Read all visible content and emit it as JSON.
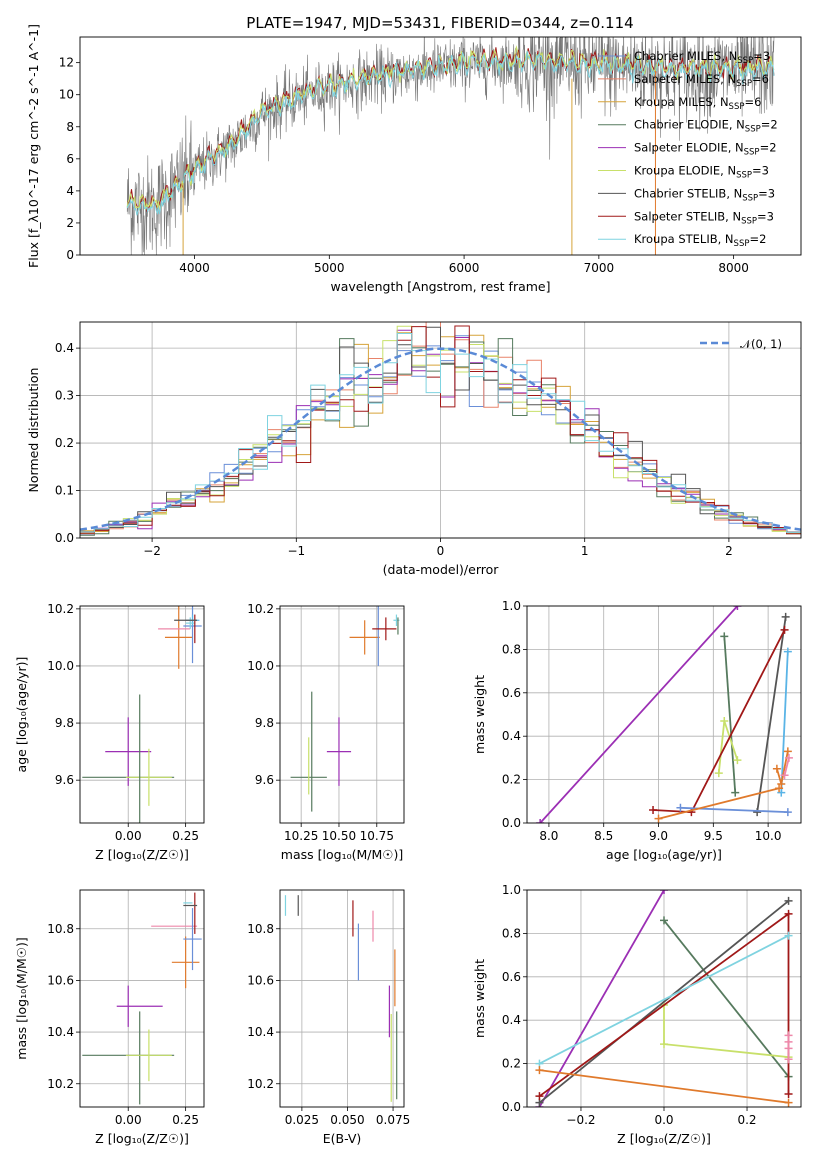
{
  "colors": {
    "chabrier_miles": "#6a8fd8",
    "salpeter_miles": "#e8836a",
    "kroupa_miles": "#d6a33a",
    "chabrier_elodie": "#567a5e",
    "salpeter_elodie": "#9b2fb4",
    "kroupa_elodie": "#c8e06a",
    "chabrier_stelib": "#555555",
    "salpeter_stelib": "#a01818",
    "kroupa_stelib": "#7fd3e0",
    "orange": "#e07a2c",
    "pink": "#ee88aa",
    "sky": "#5ab4e6",
    "gaussian": "#5a8ad6"
  },
  "chart_data": [
    {
      "type": "line",
      "title": "PLATE=1947, MJD=53431, FIBERID=0344, z=0.114",
      "xlabel": "wavelength [Angstrom, rest frame]",
      "ylabel": "Flux [f_λ10^-17 erg cm^-2 s^-1 A^-1]",
      "xlim": [
        3150,
        8500
      ],
      "ylim": [
        0,
        13.6
      ],
      "xticks": [
        4000,
        5000,
        6000,
        7000,
        8000
      ],
      "yticks": [
        0,
        2,
        4,
        6,
        8,
        10,
        12
      ],
      "spectrum_anchors": {
        "x": [
          3500,
          3700,
          4000,
          4300,
          4500,
          4800,
          5000,
          5300,
          5600,
          6000,
          6300,
          6600,
          7000,
          7300,
          7600,
          8000,
          8300
        ],
        "y": [
          3.2,
          2.9,
          5.2,
          7.0,
          8.8,
          9.9,
          10.4,
          11.0,
          11.4,
          11.9,
          12.0,
          12.0,
          11.8,
          11.7,
          11.5,
          11.5,
          11.6
        ]
      },
      "legend_position": "right",
      "legend": [
        {
          "prefix": "Chabrier MILES, N",
          "sub": "SSP",
          "suffix": "=3"
        },
        {
          "prefix": "Salpeter MILES, N",
          "sub": "SSP",
          "suffix": "=6"
        },
        {
          "prefix": "Kroupa MILES, N",
          "sub": "SSP",
          "suffix": "=6"
        },
        {
          "prefix": "Chabrier ELODIE, N",
          "sub": "SSP",
          "suffix": "=2"
        },
        {
          "prefix": "Salpeter ELODIE, N",
          "sub": "SSP",
          "suffix": "=2"
        },
        {
          "prefix": "Kroupa ELODIE, N",
          "sub": "SSP",
          "suffix": "=3"
        },
        {
          "prefix": "Chabrier STELIB, N",
          "sub": "SSP",
          "suffix": "=3"
        },
        {
          "prefix": "Salpeter STELIB, N",
          "sub": "SSP",
          "suffix": "=3"
        },
        {
          "prefix": "Kroupa STELIB, N",
          "sub": "SSP",
          "suffix": "=2"
        }
      ]
    },
    {
      "type": "histogram",
      "xlabel": "(data-model)/error",
      "ylabel": "Normed distribution",
      "xlim": [
        -2.5,
        2.5
      ],
      "ylim": [
        0,
        0.455
      ],
      "xticks": [
        -2,
        -1,
        0,
        1,
        2
      ],
      "yticks": [
        0.0,
        0.1,
        0.2,
        0.3,
        0.4
      ],
      "bin_width": 0.1,
      "gaussian_label": "𝒩(0, 1)",
      "legend_position": "top-right"
    },
    {
      "type": "errorbar",
      "xlabel": "Z [log₁₀(Z/Z☉)]",
      "ylabel": "age  [log₁₀(age/yr)]",
      "xlim": [
        -0.21,
        0.33
      ],
      "ylim": [
        9.45,
        10.21
      ],
      "xticks": [
        0.0,
        0.25
      ],
      "yticks": [
        9.6,
        9.8,
        10.0,
        10.2
      ],
      "points": [
        {
          "x": 0.0,
          "y": 9.7,
          "xerr": 0.1,
          "yerr": 0.12,
          "c": "salpeter_elodie"
        },
        {
          "x": 0.0,
          "y": 9.61,
          "xerr": 0.2,
          "yerr": 0.0,
          "c": "chabrier_elodie"
        },
        {
          "x": 0.09,
          "y": 9.61,
          "xerr": 0.1,
          "yerr": 0.1,
          "c": "kroupa_elodie"
        },
        {
          "x": 0.05,
          "y": 9.61,
          "xerr": 0.0,
          "yerr": 0.29,
          "c": "chabrier_elodie"
        },
        {
          "x": 0.22,
          "y": 10.1,
          "xerr": 0.06,
          "yerr": 0.11,
          "c": "orange"
        },
        {
          "x": 0.2,
          "y": 10.13,
          "xerr": 0.07,
          "yerr": 0.0,
          "c": "pink"
        },
        {
          "x": 0.28,
          "y": 10.14,
          "xerr": 0.04,
          "yerr": 0.13,
          "c": "chabrier_miles"
        },
        {
          "x": 0.28,
          "y": 10.16,
          "xerr": 0.03,
          "yerr": 0.02,
          "c": "sky"
        },
        {
          "x": 0.27,
          "y": 10.15,
          "xerr": 0.02,
          "yerr": 0.02,
          "c": "kroupa_stelib"
        },
        {
          "x": 0.29,
          "y": 10.13,
          "xerr": 0.0,
          "yerr": 0.05,
          "c": "salpeter_stelib"
        },
        {
          "x": 0.25,
          "y": 10.16,
          "xerr": 0.05,
          "yerr": 0.0,
          "c": "chabrier_stelib"
        }
      ]
    },
    {
      "type": "errorbar",
      "xlabel": "mass [log₁₀(M/M☉)]",
      "ylabel": "",
      "xlim": [
        10.11,
        10.93
      ],
      "ylim": [
        9.45,
        10.21
      ],
      "xticks": [
        10.25,
        10.5,
        10.75
      ],
      "yticks": [
        9.6,
        9.8,
        10.0,
        10.2
      ],
      "points": [
        {
          "x": 10.5,
          "y": 9.7,
          "xerr": 0.08,
          "yerr": 0.12,
          "c": "salpeter_elodie"
        },
        {
          "x": 10.3,
          "y": 9.61,
          "xerr": 0.12,
          "yerr": 0.0,
          "c": "chabrier_elodie"
        },
        {
          "x": 10.32,
          "y": 9.7,
          "xerr": 0.0,
          "yerr": 0.21,
          "c": "chabrier_elodie"
        },
        {
          "x": 10.3,
          "y": 9.65,
          "xerr": 0.0,
          "yerr": 0.1,
          "c": "kroupa_elodie"
        },
        {
          "x": 10.67,
          "y": 10.1,
          "xerr": 0.1,
          "yerr": 0.06,
          "c": "orange"
        },
        {
          "x": 10.76,
          "y": 10.12,
          "xerr": 0.0,
          "yerr": 0.12,
          "c": "chabrier_miles"
        },
        {
          "x": 10.8,
          "y": 10.13,
          "xerr": 0.08,
          "yerr": 0.0,
          "c": "salpeter_stelib"
        },
        {
          "x": 10.81,
          "y": 10.13,
          "xerr": 0.0,
          "yerr": 0.04,
          "c": "salpeter_stelib"
        },
        {
          "x": 10.88,
          "y": 10.16,
          "xerr": 0.02,
          "yerr": 0.02,
          "c": "kroupa_stelib"
        },
        {
          "x": 10.89,
          "y": 10.14,
          "xerr": 0.0,
          "yerr": 0.03,
          "c": "chabrier_elodie"
        }
      ]
    },
    {
      "type": "line",
      "xlabel": "age  [log₁₀(age/yr)]",
      "ylabel": "mass weight",
      "xlim": [
        7.8,
        10.3
      ],
      "ylim": [
        0,
        1.0
      ],
      "xticks": [
        8.0,
        8.5,
        9.0,
        9.5,
        10.0
      ],
      "yticks": [
        0.0,
        0.2,
        0.4,
        0.6,
        0.8,
        1.0
      ],
      "series": [
        {
          "c": "salpeter_elodie",
          "x": [
            7.92,
            9.72
          ],
          "y": [
            0.0,
            1.0
          ]
        },
        {
          "c": "chabrier_elodie",
          "x": [
            9.6,
            9.7
          ],
          "y": [
            0.86,
            0.14
          ]
        },
        {
          "c": "kroupa_elodie",
          "x": [
            9.55,
            9.6,
            9.72
          ],
          "y": [
            0.23,
            0.47,
            0.29
          ]
        },
        {
          "c": "chabrier_stelib",
          "x": [
            9.9,
            10.16
          ],
          "y": [
            0.05,
            0.95
          ]
        },
        {
          "c": "salpeter_stelib",
          "x": [
            8.95,
            9.3,
            10.15
          ],
          "y": [
            0.06,
            0.05,
            0.89
          ]
        },
        {
          "c": "chabrier_miles",
          "x": [
            9.2,
            10.18
          ],
          "y": [
            0.07,
            0.05
          ]
        },
        {
          "c": "sky",
          "x": [
            10.12,
            10.18
          ],
          "y": [
            0.14,
            0.79
          ]
        },
        {
          "c": "orange",
          "x": [
            9.0,
            10.1
          ],
          "y": [
            0.02,
            0.16
          ]
        },
        {
          "c": "orange",
          "x": [
            10.08,
            10.12,
            10.18
          ],
          "y": [
            0.25,
            0.18,
            0.33
          ]
        },
        {
          "c": "pink",
          "x": [
            10.15,
            10.19
          ],
          "y": [
            0.22,
            0.3
          ]
        }
      ]
    },
    {
      "type": "errorbar",
      "xlabel": "Z [log₁₀(Z/Z☉)]",
      "ylabel": "mass [log₁₀(M/M☉)]",
      "xlim": [
        -0.21,
        0.33
      ],
      "ylim": [
        10.11,
        10.95
      ],
      "xticks": [
        0.0,
        0.25
      ],
      "yticks": [
        10.2,
        10.4,
        10.6,
        10.8
      ],
      "points": [
        {
          "x": 0.0,
          "y": 10.5,
          "xerr": 0.0,
          "yerr": 0.08,
          "c": "salpeter_elodie"
        },
        {
          "x": 0.05,
          "y": 10.5,
          "xerr": 0.1,
          "yerr": 0.0,
          "c": "salpeter_elodie"
        },
        {
          "x": 0.0,
          "y": 10.31,
          "xerr": 0.2,
          "yerr": 0.0,
          "c": "chabrier_elodie"
        },
        {
          "x": 0.05,
          "y": 10.3,
          "xerr": 0.0,
          "yerr": 0.18,
          "c": "chabrier_elodie"
        },
        {
          "x": 0.09,
          "y": 10.31,
          "xerr": 0.1,
          "yerr": 0.1,
          "c": "kroupa_elodie"
        },
        {
          "x": 0.25,
          "y": 10.67,
          "xerr": 0.06,
          "yerr": 0.1,
          "c": "orange"
        },
        {
          "x": 0.2,
          "y": 10.81,
          "xerr": 0.1,
          "yerr": 0.0,
          "c": "pink"
        },
        {
          "x": 0.28,
          "y": 10.76,
          "xerr": 0.04,
          "yerr": 0.12,
          "c": "chabrier_miles"
        },
        {
          "x": 0.29,
          "y": 10.86,
          "xerr": 0.0,
          "yerr": 0.08,
          "c": "salpeter_stelib"
        },
        {
          "x": 0.27,
          "y": 10.89,
          "xerr": 0.03,
          "yerr": 0.0,
          "c": "chabrier_stelib"
        },
        {
          "x": 0.26,
          "y": 10.9,
          "xerr": 0.02,
          "yerr": 0.0,
          "c": "kroupa_stelib"
        }
      ]
    },
    {
      "type": "errorbar",
      "xlabel": "E(B-V)",
      "ylabel": "",
      "xlim": [
        0.013,
        0.081
      ],
      "ylim": [
        10.11,
        10.95
      ],
      "xticks": [
        0.025,
        0.05,
        0.075
      ],
      "yticks": [
        10.2,
        10.4,
        10.6,
        10.8
      ],
      "points": [
        {
          "x": 0.016,
          "y": 10.89,
          "xerr": 0.0,
          "yerr": 0.04,
          "c": "kroupa_stelib"
        },
        {
          "x": 0.023,
          "y": 10.89,
          "xerr": 0.0,
          "yerr": 0.04,
          "c": "chabrier_stelib"
        },
        {
          "x": 0.053,
          "y": 10.84,
          "xerr": 0.0,
          "yerr": 0.07,
          "c": "salpeter_stelib"
        },
        {
          "x": 0.056,
          "y": 10.71,
          "xerr": 0.0,
          "yerr": 0.11,
          "c": "chabrier_miles"
        },
        {
          "x": 0.064,
          "y": 10.81,
          "xerr": 0.0,
          "yerr": 0.06,
          "c": "pink"
        },
        {
          "x": 0.073,
          "y": 10.48,
          "xerr": 0.0,
          "yerr": 0.1,
          "c": "salpeter_elodie"
        },
        {
          "x": 0.074,
          "y": 10.3,
          "xerr": 0.0,
          "yerr": 0.17,
          "c": "kroupa_elodie"
        },
        {
          "x": 0.076,
          "y": 10.61,
          "xerr": 0.0,
          "yerr": 0.11,
          "c": "orange"
        },
        {
          "x": 0.077,
          "y": 10.31,
          "xerr": 0.0,
          "yerr": 0.17,
          "c": "chabrier_elodie"
        }
      ]
    },
    {
      "type": "line",
      "xlabel": "Z [log₁₀(Z/Z☉)]",
      "ylabel": "mass weight",
      "xlim": [
        -0.33,
        0.33
      ],
      "ylim": [
        0,
        1.0
      ],
      "xticks": [
        -0.2,
        0.0,
        0.2
      ],
      "yticks": [
        0.0,
        0.2,
        0.4,
        0.6,
        0.8,
        1.0
      ],
      "series": [
        {
          "c": "salpeter_elodie",
          "x": [
            -0.3,
            0.0
          ],
          "y": [
            0.0,
            1.0
          ]
        },
        {
          "c": "chabrier_elodie",
          "x": [
            0.0,
            0.3
          ],
          "y": [
            0.86,
            0.14
          ]
        },
        {
          "c": "kroupa_elodie",
          "x": [
            0.0,
            0.0,
            0.3
          ],
          "y": [
            0.47,
            0.29,
            0.23
          ]
        },
        {
          "c": "chabrier_stelib",
          "x": [
            -0.3,
            0.3
          ],
          "y": [
            0.02,
            0.95
          ]
        },
        {
          "c": "salpeter_stelib",
          "x": [
            -0.3,
            0.3,
            0.3
          ],
          "y": [
            0.05,
            0.89,
            0.06
          ]
        },
        {
          "c": "kroupa_stelib",
          "x": [
            -0.3,
            0.3
          ],
          "y": [
            0.2,
            0.79
          ]
        },
        {
          "c": "orange",
          "x": [
            -0.3,
            0.3
          ],
          "y": [
            0.17,
            0.02
          ]
        },
        {
          "c": "pink",
          "x": [
            0.3,
            0.3,
            0.3,
            0.3
          ],
          "y": [
            0.22,
            0.27,
            0.3,
            0.33
          ]
        }
      ]
    }
  ]
}
